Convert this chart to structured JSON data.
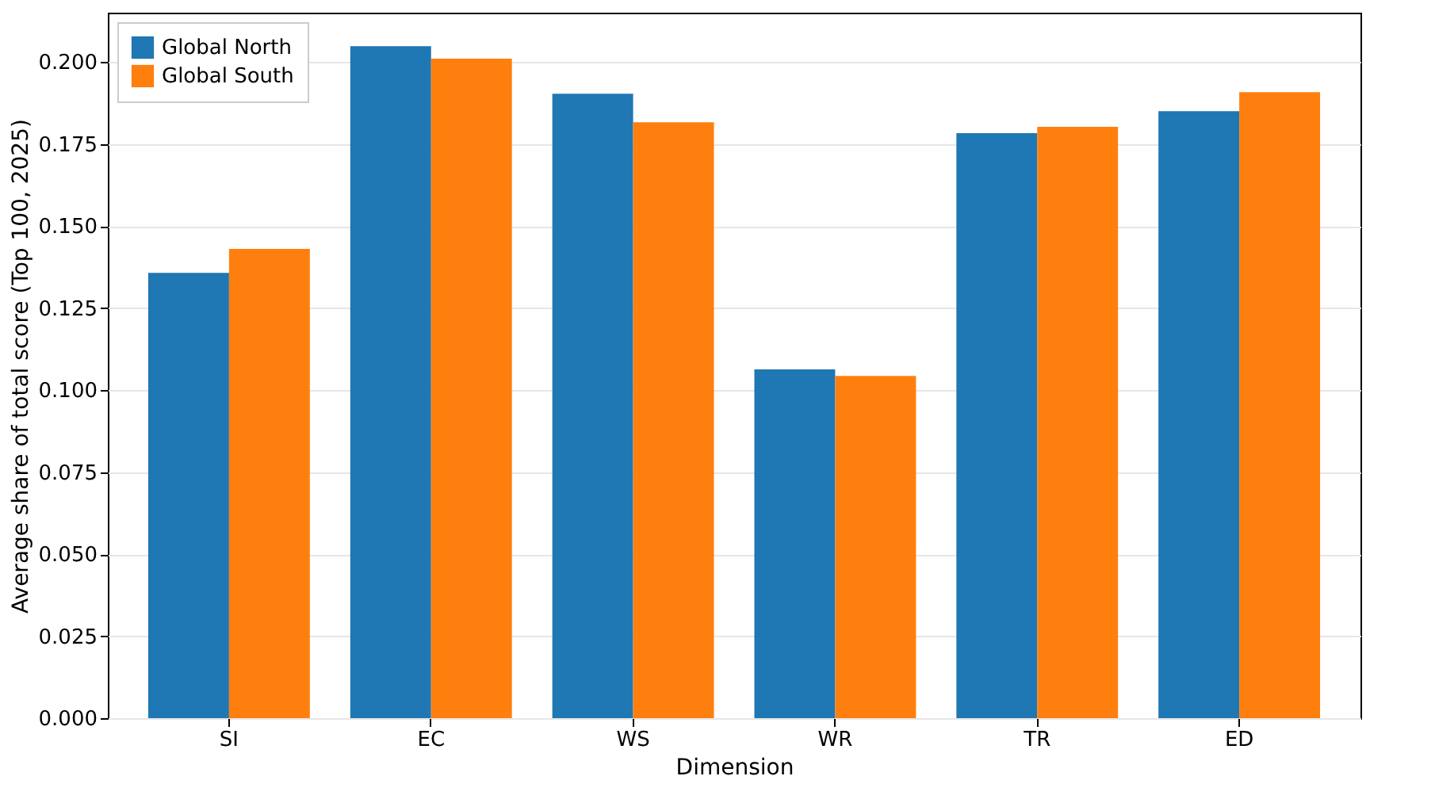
{
  "chart_data": {
    "type": "bar",
    "xlabel": "Dimension",
    "ylabel": "Average share of total score (Top 100, 2025)",
    "categories": [
      "SI",
      "EC",
      "WS",
      "WR",
      "TR",
      "ED"
    ],
    "series": [
      {
        "name": "Global North",
        "color": "#1f77b4",
        "values": [
          0.1357,
          0.2048,
          0.1903,
          0.1063,
          0.1783,
          0.185
        ]
      },
      {
        "name": "Global South",
        "color": "#ff7f0e",
        "values": [
          0.143,
          0.201,
          0.1816,
          0.1043,
          0.1802,
          0.1908
        ]
      }
    ],
    "ylim": [
      0,
      0.215
    ],
    "yticks": [
      {
        "value": 0,
        "label": "0.000"
      },
      {
        "value": 0.025,
        "label": "0.025"
      },
      {
        "value": 0.05,
        "label": "0.050"
      },
      {
        "value": 0.075,
        "label": "0.075"
      },
      {
        "value": 0.1,
        "label": "0.100"
      },
      {
        "value": 0.125,
        "label": "0.125"
      },
      {
        "value": 0.15,
        "label": "0.150"
      },
      {
        "value": 0.175,
        "label": "0.175"
      },
      {
        "value": 0.2,
        "label": "0.200"
      }
    ],
    "grid": "y",
    "legend": "top left"
  }
}
